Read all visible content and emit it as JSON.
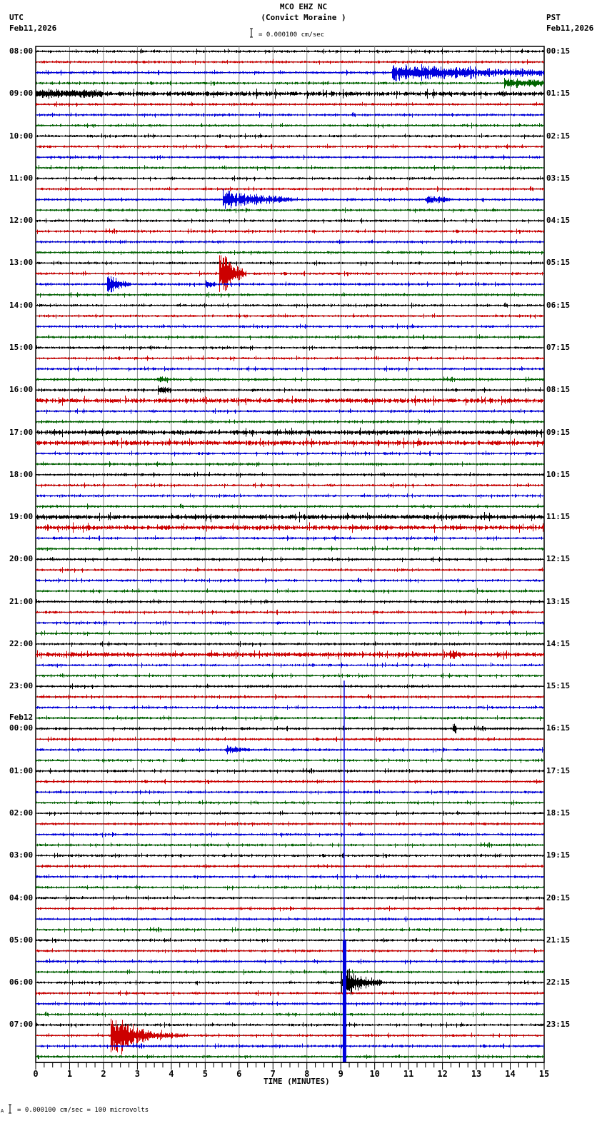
{
  "header": {
    "station": "MCO EHZ NC",
    "location": "(Convict Moraine )",
    "left_tz": "UTC",
    "left_date": "Feb11,2026",
    "right_tz": "PST",
    "right_date": "Feb11,2026",
    "scale_text": "= 0.000100 cm/sec"
  },
  "footer": {
    "scale_text": "= 0.000100 cm/sec =     100 microvolts",
    "prefix": "A"
  },
  "chart_data": {
    "type": "line",
    "title": "MCO EHZ NC (Convict Moraine )",
    "xlabel": "TIME (MINUTES)",
    "ylabel": "",
    "x_ticks": [
      "0",
      "1",
      "2",
      "3",
      "4",
      "5",
      "6",
      "7",
      "8",
      "9",
      "10",
      "11",
      "12",
      "13",
      "14",
      "15"
    ],
    "xlim": [
      0,
      15
    ],
    "grid": true,
    "scale": "0.000100 cm/sec = 100 microvolts",
    "trace_colors": [
      "#000000",
      "#cc0000",
      "#0000dd",
      "#006400"
    ],
    "left_labels": [
      {
        "row": 0,
        "text": "08:00"
      },
      {
        "row": 4,
        "text": "09:00"
      },
      {
        "row": 8,
        "text": "10:00"
      },
      {
        "row": 12,
        "text": "11:00"
      },
      {
        "row": 16,
        "text": "12:00"
      },
      {
        "row": 20,
        "text": "13:00"
      },
      {
        "row": 24,
        "text": "14:00"
      },
      {
        "row": 28,
        "text": "15:00"
      },
      {
        "row": 32,
        "text": "16:00"
      },
      {
        "row": 36,
        "text": "17:00"
      },
      {
        "row": 40,
        "text": "18:00"
      },
      {
        "row": 44,
        "text": "19:00"
      },
      {
        "row": 48,
        "text": "20:00"
      },
      {
        "row": 52,
        "text": "21:00"
      },
      {
        "row": 56,
        "text": "22:00"
      },
      {
        "row": 60,
        "text": "23:00"
      },
      {
        "row": 64,
        "text": "00:00",
        "date": "Feb12"
      },
      {
        "row": 68,
        "text": "01:00"
      },
      {
        "row": 72,
        "text": "02:00"
      },
      {
        "row": 76,
        "text": "03:00"
      },
      {
        "row": 80,
        "text": "04:00"
      },
      {
        "row": 84,
        "text": "05:00"
      },
      {
        "row": 88,
        "text": "06:00"
      },
      {
        "row": 92,
        "text": "07:00"
      }
    ],
    "right_labels": [
      {
        "row": 0,
        "text": "00:15"
      },
      {
        "row": 4,
        "text": "01:15"
      },
      {
        "row": 8,
        "text": "02:15"
      },
      {
        "row": 12,
        "text": "03:15"
      },
      {
        "row": 16,
        "text": "04:15"
      },
      {
        "row": 20,
        "text": "05:15"
      },
      {
        "row": 24,
        "text": "06:15"
      },
      {
        "row": 28,
        "text": "07:15"
      },
      {
        "row": 32,
        "text": "08:15"
      },
      {
        "row": 36,
        "text": "09:15"
      },
      {
        "row": 40,
        "text": "10:15"
      },
      {
        "row": 44,
        "text": "11:15"
      },
      {
        "row": 48,
        "text": "12:15"
      },
      {
        "row": 52,
        "text": "13:15"
      },
      {
        "row": 56,
        "text": "14:15"
      },
      {
        "row": 60,
        "text": "15:15"
      },
      {
        "row": 64,
        "text": "16:15"
      },
      {
        "row": 68,
        "text": "17:15"
      },
      {
        "row": 72,
        "text": "18:15"
      },
      {
        "row": 76,
        "text": "19:15"
      },
      {
        "row": 80,
        "text": "20:15"
      },
      {
        "row": 84,
        "text": "21:15"
      },
      {
        "row": 88,
        "text": "22:15"
      },
      {
        "row": 92,
        "text": "23:15"
      }
    ],
    "rows": 96,
    "noisy_rows": [
      4,
      33,
      36,
      37,
      44,
      45,
      57
    ],
    "events": [
      {
        "row": 2,
        "start": 10.5,
        "end": 15.0,
        "amp": 11,
        "decay": 0.25
      },
      {
        "row": 3,
        "start": 13.8,
        "end": 15.0,
        "amp": 7,
        "decay": 0.6
      },
      {
        "row": 4,
        "start": 0.0,
        "end": 2.0,
        "amp": 4,
        "decay": 0.1
      },
      {
        "row": 14,
        "start": 5.5,
        "end": 7.5,
        "amp": 16,
        "decay": 0.9
      },
      {
        "row": 14,
        "start": 11.5,
        "end": 12.2,
        "amp": 6,
        "decay": 1.5
      },
      {
        "row": 21,
        "start": 5.4,
        "end": 6.2,
        "amp": 40,
        "decay": 2.5
      },
      {
        "row": 22,
        "start": 2.1,
        "end": 2.8,
        "amp": 18,
        "decay": 3.0
      },
      {
        "row": 22,
        "start": 5.0,
        "end": 5.3,
        "amp": 6,
        "decay": 3.0
      },
      {
        "row": 31,
        "start": 3.6,
        "end": 3.9,
        "amp": 6,
        "decay": 3.0
      },
      {
        "row": 32,
        "start": 3.6,
        "end": 4.0,
        "amp": 7,
        "decay": 3.0
      },
      {
        "row": 57,
        "start": 12.2,
        "end": 12.5,
        "amp": 8,
        "decay": 3.0
      },
      {
        "row": 64,
        "start": 12.3,
        "end": 12.4,
        "amp": 9,
        "decay": 3.0
      },
      {
        "row": 66,
        "start": 5.6,
        "end": 6.3,
        "amp": 5,
        "decay": 1.5
      },
      {
        "row": 88,
        "start": 9.0,
        "end": 10.2,
        "amp": 30,
        "decay": 2.0
      },
      {
        "row": 93,
        "start": 2.2,
        "end": 4.5,
        "amp": 45,
        "decay": 1.6
      }
    ],
    "big_event": {
      "row_start": 60,
      "row_end": 95,
      "minute": 9.1,
      "color": "#0000dd"
    }
  }
}
